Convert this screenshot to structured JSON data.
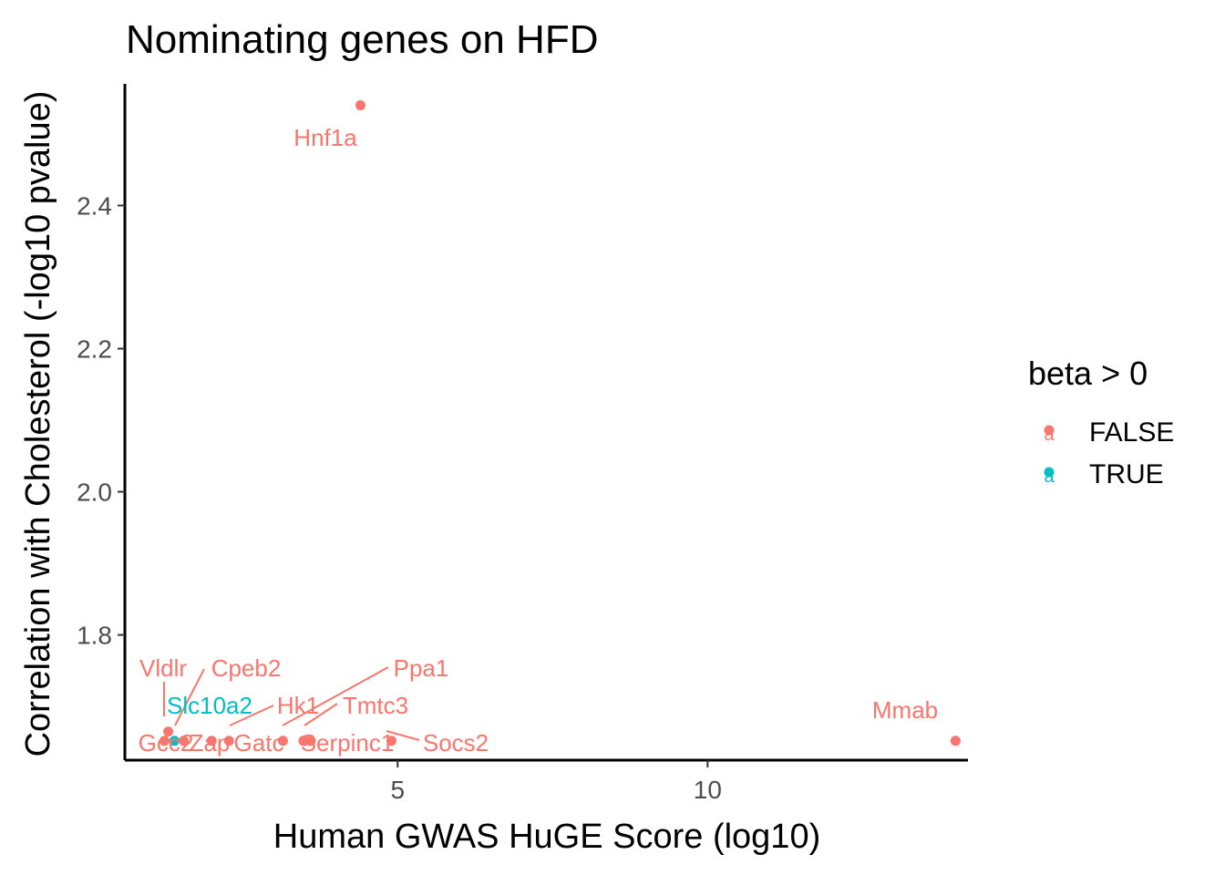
{
  "chart_data": {
    "type": "scatter",
    "title": "Nominating genes on HFD",
    "xlabel": "Human GWAS HuGE Score (log10)",
    "ylabel": "Correlation with Cholesterol (-log10 pvalue)",
    "xlim": [
      0.6,
      14.2
    ],
    "ylim": [
      1.625,
      2.57
    ],
    "x_ticks": [
      5,
      10
    ],
    "x_tick_labels": [
      "5",
      "10"
    ],
    "y_ticks": [
      1.8,
      2.0,
      2.2,
      2.4
    ],
    "y_tick_labels": [
      "1.8",
      "2.0",
      "2.2",
      "2.4"
    ],
    "grid": false,
    "legend": {
      "title": "beta > 0",
      "placement": "right",
      "entries": [
        {
          "label": "FALSE",
          "color": "#F8766D",
          "glyph": "a"
        },
        {
          "label": "TRUE",
          "color": "#00BFC4",
          "glyph": "a"
        }
      ]
    },
    "points": [
      {
        "label": "Hnf1a",
        "x": 4.4,
        "y": 2.54,
        "group": "FALSE"
      },
      {
        "label": "Mmab",
        "x": 14.0,
        "y": 1.652,
        "group": "FALSE"
      },
      {
        "label": "Vldlr",
        "x": 1.3,
        "y": 1.665,
        "group": "FALSE"
      },
      {
        "label": "Gcc2",
        "x": 1.24,
        "y": 1.652,
        "group": "FALSE"
      },
      {
        "label": "Slc10a2",
        "x": 1.4,
        "y": 1.652,
        "group": "TRUE"
      },
      {
        "label": "Cpeb2",
        "x": 1.55,
        "y": 1.652,
        "group": "FALSE"
      },
      {
        "label": "Zap",
        "x": 2.0,
        "y": 1.652,
        "group": "FALSE"
      },
      {
        "label": "Hk1",
        "x": 2.28,
        "y": 1.652,
        "group": "FALSE"
      },
      {
        "label": "Gatc",
        "x": 3.15,
        "y": 1.652,
        "group": "FALSE"
      },
      {
        "label": "Ppa1",
        "x": 3.5,
        "y": 1.652,
        "group": "FALSE"
      },
      {
        "label": "Tmtc3",
        "x": 3.6,
        "y": 1.652,
        "group": "FALSE"
      },
      {
        "label": "Serpinc1",
        "x": 3.48,
        "y": 1.652,
        "group": "FALSE"
      },
      {
        "label": "Socs2",
        "x": 4.9,
        "y": 1.652,
        "group": "FALSE"
      }
    ]
  }
}
